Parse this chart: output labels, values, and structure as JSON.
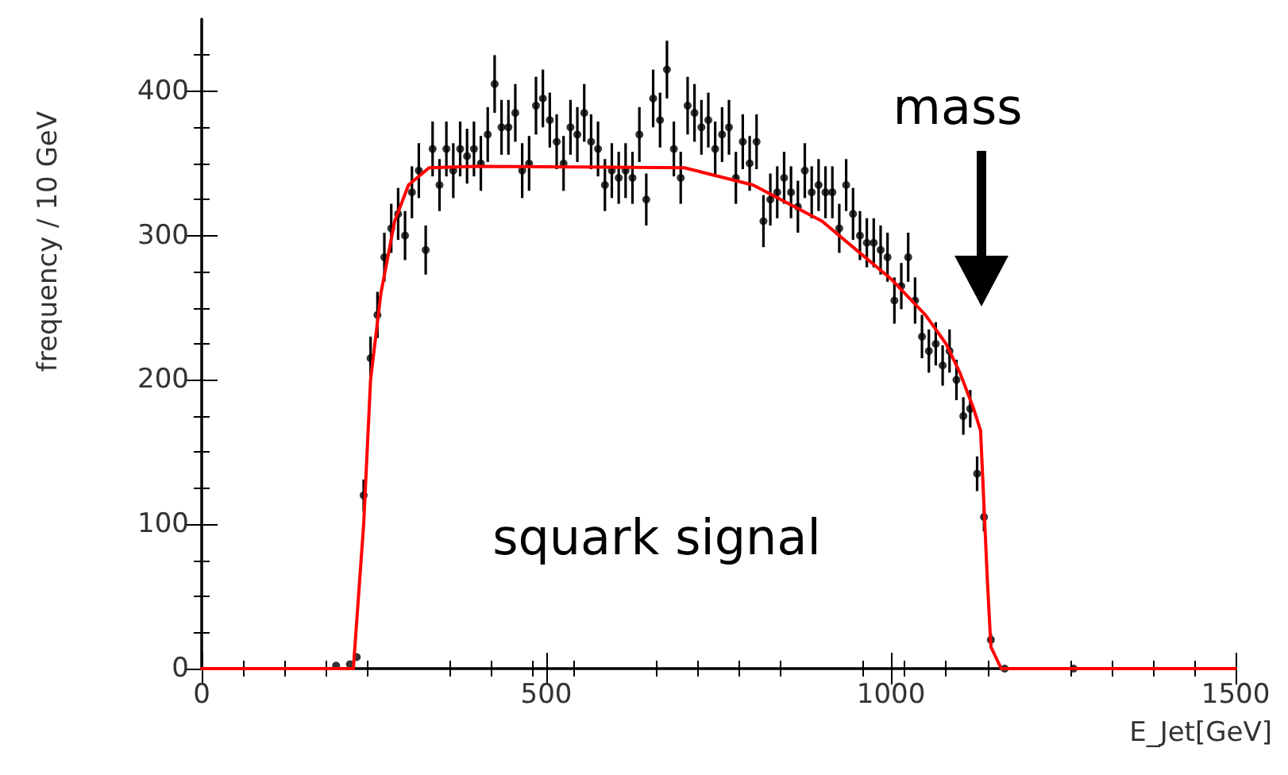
{
  "chart_data": {
    "type": "scatter",
    "xlabel": "E_Jet[GeV]",
    "ylabel": "frequency / 10 GeV",
    "xlim": [
      0,
      1500
    ],
    "xticks": [
      0,
      500,
      1000,
      1500
    ],
    "ylim": [
      0,
      450
    ],
    "yticks": [
      0,
      100,
      200,
      300,
      400
    ],
    "grid": false,
    "marker": "circle",
    "annotations": [
      "mass",
      "squark signal"
    ],
    "series": [
      {
        "color": "#000000",
        "x": [
          195,
          215,
          225,
          235,
          245,
          255,
          265,
          275,
          285,
          295,
          305,
          315,
          325,
          335,
          345,
          355,
          365,
          375,
          385,
          395,
          405,
          415,
          425,
          435,
          445,
          455,
          465,
          475,
          485,
          495,
          505,
          515,
          525,
          535,
          545,
          555,
          565,
          575,
          585,
          595,
          605,
          615,
          625,
          635,
          645,
          655,
          665,
          675,
          685,
          695,
          705,
          715,
          725,
          735,
          745,
          755,
          765,
          775,
          785,
          795,
          805,
          815,
          825,
          835,
          845,
          855,
          865,
          875,
          885,
          895,
          905,
          915,
          925,
          935,
          945,
          955,
          965,
          975,
          985,
          995,
          1005,
          1015,
          1025,
          1035,
          1045,
          1055,
          1065,
          1075,
          1085,
          1095,
          1105,
          1115,
          1125,
          1135,
          1145,
          1165,
          1265
        ],
        "values": [
          2,
          3,
          8,
          120,
          215,
          245,
          285,
          305,
          315,
          300,
          330,
          345,
          290,
          360,
          335,
          360,
          345,
          360,
          355,
          360,
          350,
          370,
          405,
          375,
          375,
          385,
          345,
          350,
          390,
          395,
          380,
          365,
          350,
          375,
          370,
          385,
          365,
          360,
          335,
          345,
          340,
          345,
          340,
          370,
          325,
          395,
          380,
          415,
          360,
          340,
          390,
          385,
          375,
          380,
          360,
          370,
          375,
          340,
          365,
          350,
          365,
          310,
          325,
          330,
          340,
          330,
          320,
          345,
          330,
          335,
          330,
          330,
          305,
          335,
          315,
          300,
          295,
          295,
          290,
          285,
          255,
          265,
          285,
          255,
          230,
          220,
          225,
          210,
          220,
          200,
          175,
          180,
          135,
          105,
          20,
          0,
          0
        ],
        "errors": [
          null,
          null,
          null,
          11,
          15,
          16,
          17,
          17,
          18,
          17,
          18,
          19,
          17,
          19,
          18,
          19,
          19,
          19,
          19,
          19,
          19,
          19,
          20,
          19,
          19,
          20,
          19,
          19,
          20,
          20,
          19,
          19,
          19,
          19,
          19,
          20,
          19,
          19,
          18,
          19,
          18,
          19,
          18,
          19,
          18,
          20,
          19,
          20,
          19,
          18,
          20,
          20,
          19,
          19,
          19,
          19,
          19,
          18,
          19,
          19,
          19,
          18,
          18,
          18,
          18,
          18,
          18,
          19,
          18,
          18,
          18,
          18,
          17,
          18,
          18,
          17,
          17,
          17,
          17,
          17,
          16,
          16,
          17,
          16,
          15,
          15,
          15,
          14,
          15,
          14,
          13,
          13,
          12,
          10,
          4,
          null,
          null
        ]
      },
      {
        "type": "line",
        "color": "#ff0000",
        "marker": "none",
        "x": [
          0,
          220,
          235,
          245,
          260,
          280,
          300,
          330,
          400,
          700,
          800,
          900,
          950,
          1000,
          1050,
          1080,
          1100,
          1120,
          1130,
          1140,
          1145,
          1160,
          1500
        ],
        "values": [
          0,
          0,
          100,
          200,
          260,
          310,
          335,
          347,
          348,
          347,
          335,
          310,
          290,
          270,
          245,
          225,
          205,
          180,
          165,
          60,
          15,
          0,
          0
        ]
      }
    ]
  }
}
